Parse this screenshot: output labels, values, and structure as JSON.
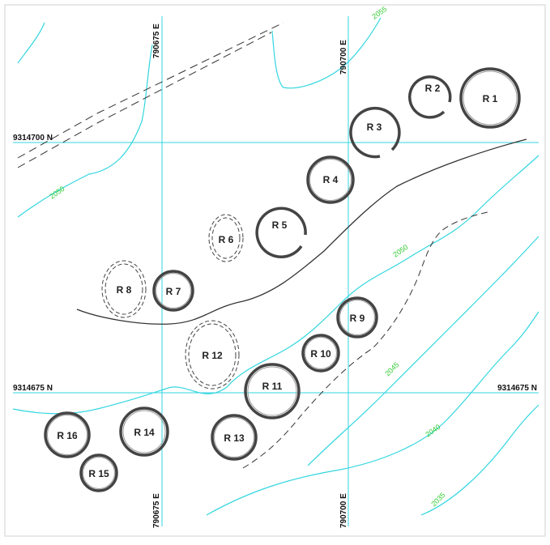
{
  "map": {
    "grid_labels": {
      "e_top_left": "790675 E",
      "e_top_right": "790700 E",
      "e_bottom_left": "790675 E",
      "e_bottom_right": "790700 E",
      "n_upper": "9314700 N",
      "n_lower_left": "9314675 N",
      "n_lower_right": "9314675 N"
    },
    "contour_labels": {
      "c2055": "2055",
      "c2050_left": "2050",
      "c2050_right": "2050",
      "c2045": "2045",
      "c2040": "2040",
      "c2035": "2035"
    },
    "rings": [
      {
        "id": "R 1",
        "style": "solid"
      },
      {
        "id": "R 2",
        "style": "solid-open"
      },
      {
        "id": "R 3",
        "style": "solid-open"
      },
      {
        "id": "R 4",
        "style": "solid"
      },
      {
        "id": "R 5",
        "style": "solid-open"
      },
      {
        "id": "R 6",
        "style": "dashed"
      },
      {
        "id": "R 7",
        "style": "solid"
      },
      {
        "id": "R 8",
        "style": "dashed"
      },
      {
        "id": "R 9",
        "style": "solid"
      },
      {
        "id": "R 10",
        "style": "solid"
      },
      {
        "id": "R 11",
        "style": "solid"
      },
      {
        "id": "R 12",
        "style": "dashed"
      },
      {
        "id": "R 13",
        "style": "solid"
      },
      {
        "id": "R 14",
        "style": "solid"
      },
      {
        "id": "R 15",
        "style": "solid"
      },
      {
        "id": "R 16",
        "style": "solid"
      }
    ],
    "colors": {
      "gridline": "#33d6e0",
      "contour": "#33d6e0",
      "contour_label": "#33cc33",
      "ring": "#444444"
    }
  }
}
